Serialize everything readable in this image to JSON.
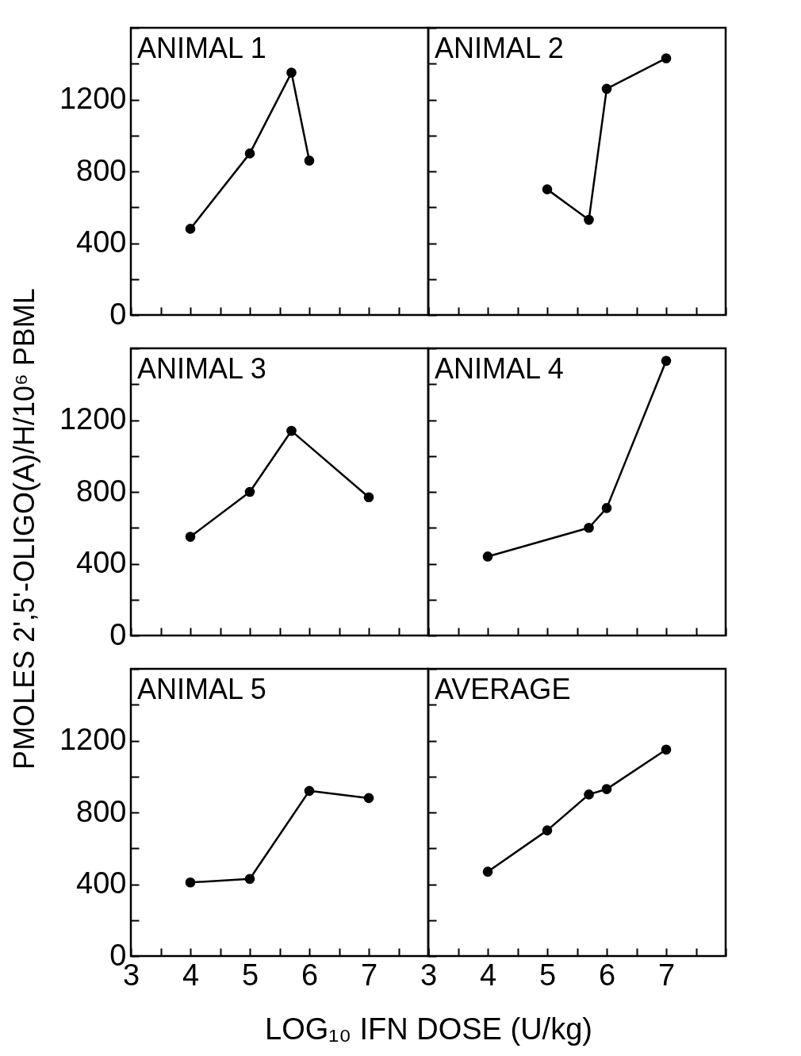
{
  "chart_data": [
    {
      "type": "line",
      "title": "ANIMAL 1",
      "x": [
        4,
        5,
        5.7,
        6
      ],
      "series": [
        {
          "color": "#000000",
          "values": [
            480,
            900,
            1350,
            860
          ]
        }
      ],
      "xlim": [
        3,
        8
      ],
      "xticks": [
        3,
        {
          "value": 3.5,
          "label": null
        },
        4,
        {
          "value": 4.5,
          "label": null
        },
        5,
        {
          "value": 5.5,
          "label": null
        },
        6,
        {
          "value": 6.5,
          "label": null
        },
        7,
        {
          "value": 7.5,
          "label": null
        },
        {
          "value": 8,
          "label": null
        }
      ],
      "ylim": [
        0,
        1600
      ],
      "yticks": [
        0,
        {
          "value": 200,
          "label": null
        },
        400,
        {
          "value": 600,
          "label": null
        },
        800,
        {
          "value": 1000,
          "label": null
        },
        1200,
        {
          "value": 1400,
          "label": null
        },
        {
          "value": 1600,
          "label": null
        }
      ],
      "marker": "circle",
      "tick_labels": "y"
    },
    {
      "type": "line",
      "title": "ANIMAL 2",
      "x": [
        5,
        5.7,
        6,
        7
      ],
      "series": [
        {
          "color": "#000000",
          "values": [
            700,
            530,
            1260,
            1430
          ]
        }
      ],
      "xlim": [
        3,
        8
      ],
      "xticks": [
        3,
        {
          "value": 3.5,
          "label": null
        },
        4,
        {
          "value": 4.5,
          "label": null
        },
        5,
        {
          "value": 5.5,
          "label": null
        },
        6,
        {
          "value": 6.5,
          "label": null
        },
        7,
        {
          "value": 7.5,
          "label": null
        },
        {
          "value": 8,
          "label": null
        }
      ],
      "ylim": [
        0,
        1600
      ],
      "yticks": [
        0,
        {
          "value": 200,
          "label": null
        },
        400,
        {
          "value": 600,
          "label": null
        },
        800,
        {
          "value": 1000,
          "label": null
        },
        1200,
        {
          "value": 1400,
          "label": null
        },
        {
          "value": 1600,
          "label": null
        }
      ],
      "marker": "circle",
      "tick_labels": false
    },
    {
      "type": "line",
      "title": "ANIMAL 3",
      "ylabel": "PMOLES 2',5'-OLIGO(A)/H/10⁶ PBML",
      "x": [
        4,
        5,
        5.7,
        7
      ],
      "series": [
        {
          "color": "#000000",
          "values": [
            550,
            800,
            1140,
            770
          ]
        }
      ],
      "xlim": [
        3,
        8
      ],
      "xticks": [
        3,
        {
          "value": 3.5,
          "label": null
        },
        4,
        {
          "value": 4.5,
          "label": null
        },
        5,
        {
          "value": 5.5,
          "label": null
        },
        6,
        {
          "value": 6.5,
          "label": null
        },
        7,
        {
          "value": 7.5,
          "label": null
        },
        {
          "value": 8,
          "label": null
        }
      ],
      "ylim": [
        0,
        1600
      ],
      "yticks": [
        0,
        {
          "value": 200,
          "label": null
        },
        400,
        {
          "value": 600,
          "label": null
        },
        800,
        {
          "value": 1000,
          "label": null
        },
        1200,
        {
          "value": 1400,
          "label": null
        },
        {
          "value": 1600,
          "label": null
        }
      ],
      "marker": "circle",
      "tick_labels": "y"
    },
    {
      "type": "line",
      "title": "ANIMAL 4",
      "x": [
        4,
        5.7,
        6,
        7
      ],
      "series": [
        {
          "color": "#000000",
          "values": [
            440,
            600,
            710,
            1530
          ]
        }
      ],
      "xlim": [
        3,
        8
      ],
      "xticks": [
        3,
        {
          "value": 3.5,
          "label": null
        },
        4,
        {
          "value": 4.5,
          "label": null
        },
        5,
        {
          "value": 5.5,
          "label": null
        },
        6,
        {
          "value": 6.5,
          "label": null
        },
        7,
        {
          "value": 7.5,
          "label": null
        },
        {
          "value": 8,
          "label": null
        }
      ],
      "ylim": [
        0,
        1600
      ],
      "yticks": [
        0,
        {
          "value": 200,
          "label": null
        },
        400,
        {
          "value": 600,
          "label": null
        },
        800,
        {
          "value": 1000,
          "label": null
        },
        1200,
        {
          "value": 1400,
          "label": null
        },
        {
          "value": 1600,
          "label": null
        }
      ],
      "marker": "circle",
      "tick_labels": false
    },
    {
      "type": "line",
      "title": "ANIMAL 5",
      "xlabel": "LOG₁₀ IFN DOSE (U/kg)",
      "x": [
        4,
        5,
        6,
        7
      ],
      "series": [
        {
          "color": "#000000",
          "values": [
            410,
            430,
            920,
            880
          ]
        }
      ],
      "xlim": [
        3,
        8
      ],
      "xticks": [
        3,
        {
          "value": 3.5,
          "label": null
        },
        4,
        {
          "value": 4.5,
          "label": null
        },
        5,
        {
          "value": 5.5,
          "label": null
        },
        6,
        {
          "value": 6.5,
          "label": null
        },
        7,
        {
          "value": 7.5,
          "label": null
        },
        {
          "value": 8,
          "label": null
        }
      ],
      "ylim": [
        0,
        1600
      ],
      "yticks": [
        0,
        {
          "value": 200,
          "label": null
        },
        400,
        {
          "value": 600,
          "label": null
        },
        800,
        {
          "value": 1000,
          "label": null
        },
        1200,
        {
          "value": 1400,
          "label": null
        },
        {
          "value": 1600,
          "label": null
        }
      ],
      "marker": "circle"
    },
    {
      "type": "line",
      "title": "AVERAGE",
      "x": [
        4,
        5,
        5.7,
        6,
        7
      ],
      "series": [
        {
          "color": "#000000",
          "values": [
            470,
            700,
            900,
            930,
            1150
          ]
        }
      ],
      "xlim": [
        3,
        8
      ],
      "xticks": [
        3,
        {
          "value": 3.5,
          "label": null
        },
        4,
        {
          "value": 4.5,
          "label": null
        },
        5,
        {
          "value": 5.5,
          "label": null
        },
        6,
        {
          "value": 6.5,
          "label": null
        },
        7,
        {
          "value": 7.5,
          "label": null
        },
        {
          "value": 8,
          "label": null
        }
      ],
      "ylim": [
        0,
        1600
      ],
      "yticks": [
        0,
        {
          "value": 200,
          "label": null
        },
        400,
        {
          "value": 600,
          "label": null
        },
        800,
        {
          "value": 1000,
          "label": null
        },
        1200,
        {
          "value": 1400,
          "label": null
        },
        {
          "value": 1600,
          "label": null
        }
      ],
      "marker": "circle",
      "tick_labels": "x"
    }
  ]
}
